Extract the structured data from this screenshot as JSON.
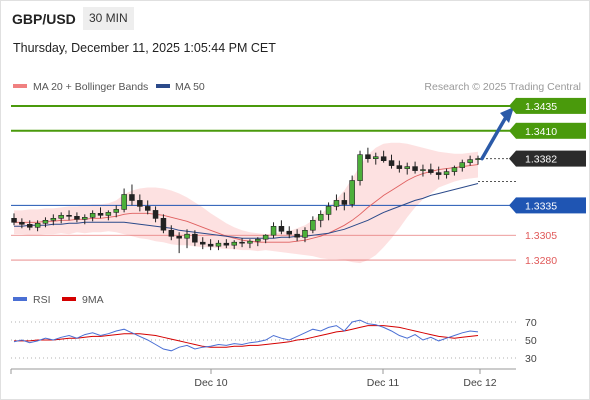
{
  "header": {
    "symbol": "GBP/USD",
    "timeframe": "30 MIN",
    "datetime": "Thursday, December 11, 2025 1:05:44 PM CET"
  },
  "copyright": "Research © 2025 Trading Central",
  "chart_data": {
    "type": "candlestick",
    "ylim": [
      1.3265,
      1.3445
    ],
    "legend": [
      {
        "label": "MA 20 + Bollinger Bands",
        "color": "#f08080"
      },
      {
        "label": "MA 50",
        "color": "#2b4a8a"
      }
    ],
    "current_price": {
      "value": 1.3382,
      "label": "1.3382"
    },
    "levels": [
      {
        "value": 1.3435,
        "label": "1.3435",
        "kind": "target",
        "color": "#4a9a0c"
      },
      {
        "value": 1.341,
        "label": "1.3410",
        "kind": "target",
        "color": "#4a9a0c"
      },
      {
        "value": 1.3335,
        "label": "1.3335",
        "kind": "pivot",
        "color": "#1f55b3"
      },
      {
        "value": 1.3305,
        "label": "1.3305",
        "kind": "support",
        "color": "#e05a5a"
      },
      {
        "value": 1.328,
        "label": "1.3280",
        "kind": "support",
        "color": "#e05a5a"
      }
    ],
    "x_labels": [
      "Dec 10",
      "Dec 11",
      "Dec 12"
    ],
    "candles": [
      [
        1.3322,
        1.3327,
        1.3315,
        1.3318
      ],
      [
        1.3318,
        1.3322,
        1.3312,
        1.3316
      ],
      [
        1.3316,
        1.332,
        1.331,
        1.3313
      ],
      [
        1.3313,
        1.332,
        1.3309,
        1.3317
      ],
      [
        1.3317,
        1.3323,
        1.3313,
        1.332
      ],
      [
        1.332,
        1.3326,
        1.3315,
        1.3322
      ],
      [
        1.3322,
        1.3328,
        1.3317,
        1.3325
      ],
      [
        1.3325,
        1.333,
        1.332,
        1.3324
      ],
      [
        1.3324,
        1.3328,
        1.3318,
        1.3321
      ],
      [
        1.3321,
        1.3326,
        1.3316,
        1.3323
      ],
      [
        1.3323,
        1.333,
        1.3319,
        1.3327
      ],
      [
        1.3327,
        1.3333,
        1.3322,
        1.3325
      ],
      [
        1.3325,
        1.333,
        1.332,
        1.3328
      ],
      [
        1.3328,
        1.3335,
        1.3323,
        1.3331
      ],
      [
        1.3331,
        1.3352,
        1.3328,
        1.3346
      ],
      [
        1.3346,
        1.3356,
        1.3335,
        1.334
      ],
      [
        1.334,
        1.3346,
        1.3329,
        1.3334
      ],
      [
        1.3334,
        1.334,
        1.3326,
        1.333
      ],
      [
        1.333,
        1.3334,
        1.3318,
        1.3322
      ],
      [
        1.3322,
        1.3326,
        1.3307,
        1.331
      ],
      [
        1.331,
        1.3315,
        1.33,
        1.3304
      ],
      [
        1.3304,
        1.3308,
        1.3287,
        1.3302
      ],
      [
        1.3302,
        1.3311,
        1.3292,
        1.3306
      ],
      [
        1.3306,
        1.331,
        1.3294,
        1.3298
      ],
      [
        1.3298,
        1.3303,
        1.3291,
        1.3296
      ],
      [
        1.3296,
        1.3301,
        1.329,
        1.3294
      ],
      [
        1.3294,
        1.33,
        1.329,
        1.3297
      ],
      [
        1.3297,
        1.3301,
        1.3292,
        1.3295
      ],
      [
        1.3295,
        1.33,
        1.3291,
        1.3298
      ],
      [
        1.3298,
        1.3302,
        1.3293,
        1.3297
      ],
      [
        1.3297,
        1.3301,
        1.3292,
        1.3299
      ],
      [
        1.3299,
        1.3303,
        1.3294,
        1.3301
      ],
      [
        1.3301,
        1.3306,
        1.3297,
        1.3305
      ],
      [
        1.3305,
        1.3318,
        1.3302,
        1.3314
      ],
      [
        1.3314,
        1.332,
        1.3306,
        1.3309
      ],
      [
        1.3309,
        1.3314,
        1.3302,
        1.3306
      ],
      [
        1.3306,
        1.3311,
        1.3299,
        1.3303
      ],
      [
        1.3303,
        1.3313,
        1.3298,
        1.331
      ],
      [
        1.331,
        1.3324,
        1.3307,
        1.332
      ],
      [
        1.332,
        1.333,
        1.3313,
        1.3326
      ],
      [
        1.3326,
        1.3338,
        1.332,
        1.3334
      ],
      [
        1.3334,
        1.3346,
        1.333,
        1.334
      ],
      [
        1.334,
        1.3348,
        1.333,
        1.3336
      ],
      [
        1.3336,
        1.3365,
        1.3333,
        1.336
      ],
      [
        1.336,
        1.339,
        1.3355,
        1.3386
      ],
      [
        1.3386,
        1.3393,
        1.3378,
        1.3382
      ],
      [
        1.3382,
        1.3388,
        1.3376,
        1.3384
      ],
      [
        1.3384,
        1.339,
        1.3378,
        1.338
      ],
      [
        1.338,
        1.3386,
        1.3372,
        1.3375
      ],
      [
        1.3375,
        1.338,
        1.3368,
        1.3372
      ],
      [
        1.3372,
        1.3378,
        1.3366,
        1.3374
      ],
      [
        1.3374,
        1.3379,
        1.3367,
        1.337
      ],
      [
        1.337,
        1.3376,
        1.3364,
        1.3371
      ],
      [
        1.3371,
        1.3377,
        1.3366,
        1.3368
      ],
      [
        1.3368,
        1.3374,
        1.3361,
        1.3366
      ],
      [
        1.3366,
        1.3372,
        1.3362,
        1.3369
      ],
      [
        1.3369,
        1.3375,
        1.3365,
        1.3373
      ],
      [
        1.3373,
        1.3381,
        1.3369,
        1.3378
      ],
      [
        1.3378,
        1.3385,
        1.3375,
        1.3381
      ],
      [
        1.3381,
        1.3385,
        1.3376,
        1.3382
      ]
    ],
    "ma20": [
      1.3318,
      1.3318,
      1.3318,
      1.3318,
      1.3319,
      1.3319,
      1.332,
      1.332,
      1.3321,
      1.3321,
      1.3322,
      1.3322,
      1.3323,
      1.3324,
      1.3326,
      1.3327,
      1.3327,
      1.3327,
      1.3326,
      1.3325,
      1.3323,
      1.3321,
      1.3319,
      1.3316,
      1.3313,
      1.331,
      1.3307,
      1.3304,
      1.3302,
      1.33,
      1.3299,
      1.3298,
      1.3298,
      1.3298,
      1.3298,
      1.3298,
      1.3299,
      1.33,
      1.3302,
      1.3304,
      1.3307,
      1.3311,
      1.3315,
      1.332,
      1.3326,
      1.3333,
      1.3339,
      1.3345,
      1.335,
      1.3355,
      1.336,
      1.3364,
      1.3367,
      1.3369,
      1.3371,
      1.3372,
      1.3373,
      1.3374,
      1.3375,
      1.3376
    ],
    "bb_upper": [
      1.333,
      1.333,
      1.3331,
      1.3331,
      1.3332,
      1.3332,
      1.3333,
      1.3334,
      1.3334,
      1.3335,
      1.3336,
      1.3336,
      1.3337,
      1.334,
      1.3346,
      1.335,
      1.3352,
      1.3353,
      1.3353,
      1.3352,
      1.335,
      1.3347,
      1.3343,
      1.3338,
      1.3333,
      1.3327,
      1.3322,
      1.3317,
      1.3313,
      1.331,
      1.3308,
      1.3307,
      1.3306,
      1.3307,
      1.3308,
      1.3309,
      1.3312,
      1.3315,
      1.332,
      1.3326,
      1.3333,
      1.3341,
      1.335,
      1.3362,
      1.3375,
      1.3386,
      1.3393,
      1.3397,
      1.3398,
      1.3398,
      1.3397,
      1.3395,
      1.3393,
      1.3391,
      1.3389,
      1.3388,
      1.3387,
      1.3387,
      1.3388,
      1.3389
    ],
    "bb_lower": [
      1.3306,
      1.3306,
      1.3305,
      1.3305,
      1.3306,
      1.3306,
      1.3307,
      1.3306,
      1.3308,
      1.3307,
      1.3308,
      1.3308,
      1.3309,
      1.3308,
      1.3306,
      1.3304,
      1.3302,
      1.3301,
      1.3299,
      1.3298,
      1.3296,
      1.3295,
      1.3295,
      1.3294,
      1.3293,
      1.3293,
      1.3292,
      1.3291,
      1.3291,
      1.329,
      1.329,
      1.3289,
      1.329,
      1.3289,
      1.3288,
      1.3287,
      1.3286,
      1.3285,
      1.3284,
      1.3282,
      1.3281,
      1.3281,
      1.328,
      1.3278,
      1.3277,
      1.328,
      1.3285,
      1.3293,
      1.3302,
      1.3312,
      1.3323,
      1.3333,
      1.3341,
      1.3347,
      1.3353,
      1.3356,
      1.3359,
      1.3361,
      1.3362,
      1.3363
    ],
    "ma50": [
      1.3314,
      1.3314,
      1.3315,
      1.3315,
      1.3315,
      1.3316,
      1.3316,
      1.3317,
      1.3317,
      1.3318,
      1.3318,
      1.3318,
      1.3318,
      1.3318,
      1.3318,
      1.3317,
      1.3316,
      1.3315,
      1.3314,
      1.3313,
      1.3312,
      1.331,
      1.3309,
      1.3308,
      1.3307,
      1.3306,
      1.3305,
      1.3304,
      1.3303,
      1.3302,
      1.3302,
      1.3302,
      1.3302,
      1.3302,
      1.3303,
      1.3303,
      1.3304,
      1.3304,
      1.3305,
      1.3306,
      1.3307,
      1.3309,
      1.3311,
      1.3314,
      1.3317,
      1.332,
      1.3324,
      1.3328,
      1.3331,
      1.3334,
      1.3337,
      1.334,
      1.3342,
      1.3345,
      1.3347,
      1.3349,
      1.3351,
      1.3353,
      1.3355,
      1.3357
    ],
    "rsi": {
      "legend": [
        {
          "label": "RSI",
          "color": "#4a6fd4"
        },
        {
          "label": "9MA",
          "color": "#d40000"
        }
      ],
      "ticks": [
        {
          "value": 70,
          "label": "70"
        },
        {
          "value": 50,
          "label": "50"
        },
        {
          "value": 30,
          "label": "30"
        }
      ],
      "ylim": [
        20,
        80
      ],
      "rsi_values": [
        48,
        50,
        47,
        49,
        52,
        50,
        53,
        55,
        52,
        56,
        58,
        55,
        57,
        60,
        62,
        58,
        54,
        50,
        45,
        40,
        38,
        42,
        44,
        40,
        42,
        43,
        45,
        44,
        46,
        45,
        47,
        48,
        50,
        55,
        52,
        50,
        54,
        58,
        62,
        60,
        64,
        66,
        60,
        70,
        72,
        68,
        67,
        64,
        60,
        55,
        52,
        56,
        50,
        53,
        49,
        52,
        55,
        58,
        60,
        59
      ],
      "ma_values": [
        49,
        49,
        49,
        50,
        50,
        50,
        51,
        52,
        52,
        53,
        54,
        54,
        55,
        56,
        57,
        57,
        57,
        56,
        55,
        53,
        51,
        49,
        47,
        45,
        43,
        42,
        42,
        42,
        43,
        43,
        44,
        44,
        45,
        46,
        47,
        48,
        50,
        51,
        53,
        55,
        57,
        59,
        60,
        62,
        64,
        66,
        66,
        66,
        65,
        64,
        62,
        60,
        58,
        56,
        54,
        53,
        52,
        53,
        54,
        55
      ]
    }
  }
}
